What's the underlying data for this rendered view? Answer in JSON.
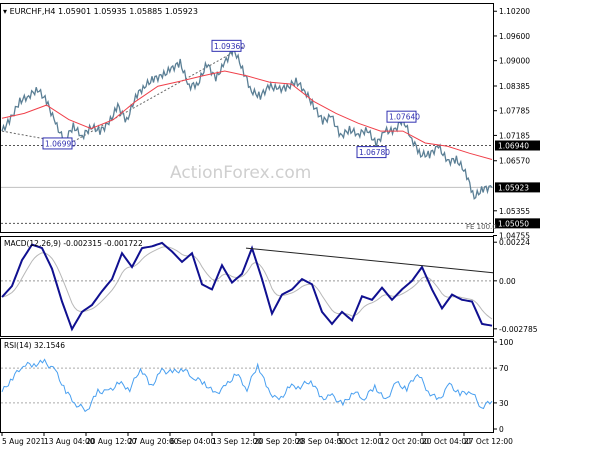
{
  "header": {
    "symbol_label": "EURCHF,H4",
    "ohlc": "1.05901 1.05935 1.05885 1.05923"
  },
  "watermark": "ActionForex.com",
  "colors": {
    "price": "#5b7f95",
    "ma": "#f0404a",
    "macd": "#101090",
    "signal": "#b8b8b8",
    "rsi": "#4aa0f0",
    "label_box": "#3030b0"
  },
  "chart_data": [
    {
      "type": "line",
      "panel": "price",
      "title": "EURCHF,H4 1.05901 1.05935 1.05885 1.05923",
      "ylim": [
        1.0484,
        1.104
      ],
      "y_ticks": [
        "1.10200",
        "1.09600",
        "1.09000",
        "1.08385",
        "1.07785",
        "1.07185",
        "1.06570",
        "1.05355",
        "1.04755"
      ],
      "series": [
        {
          "role": "price",
          "values": [
            1.0729,
            1.076,
            1.0802,
            1.0814,
            1.0831,
            1.0802,
            1.0748,
            1.0704,
            1.0741,
            1.0716,
            1.074,
            1.0729,
            1.0748,
            1.079,
            1.0753,
            1.0814,
            1.0838,
            1.0856,
            1.0863,
            1.088,
            1.0895,
            1.0838,
            1.0844,
            1.0893,
            1.0856,
            1.0895,
            1.0929,
            1.088,
            1.0826,
            1.0814,
            1.0838,
            1.0831,
            1.0834,
            1.0851,
            1.0826,
            1.079,
            1.0753,
            1.0765,
            1.0716,
            1.0733,
            1.0721,
            1.0733,
            1.0697,
            1.0729,
            1.0729,
            1.0758,
            1.0709,
            1.0672,
            1.0672,
            1.0692,
            1.0655,
            1.066,
            1.0631,
            1.0569,
            1.0589,
            1.0592
          ]
        },
        {
          "role": "moving-average",
          "values": [
            1.076,
            1.0772,
            1.0792,
            1.0757,
            1.0735,
            1.0757,
            1.0801,
            1.0838,
            1.085,
            1.0863,
            1.0875,
            1.0863,
            1.0848,
            1.0843,
            1.0801,
            1.0772,
            1.0748,
            1.0729,
            1.0729,
            1.07,
            1.0692,
            1.0675,
            1.066
          ]
        }
      ],
      "annotations": [
        {
          "label": "1.09360",
          "value": 1.0936
        },
        {
          "label": "1.06990",
          "value": 1.0699
        },
        {
          "label": "1.07640",
          "value": 1.0764
        },
        {
          "label": "1.06780",
          "value": 1.0678
        }
      ],
      "levels": [
        {
          "label": "1.06940",
          "value": 1.0694,
          "style": "dotted"
        },
        {
          "label": "1.05923",
          "value": 1.05923,
          "style": "solid"
        },
        {
          "label": "1.05050",
          "value": 1.0505,
          "style": "dotted"
        }
      ],
      "fe_label": "FE 100.0"
    },
    {
      "type": "line",
      "panel": "macd",
      "title": "MACD(12,26,9) -0.002315 -0.001722",
      "ylim": [
        -0.0032,
        0.0026
      ],
      "y_ticks": [
        "0.00224",
        "0.00",
        "-0.002785"
      ],
      "values": [
        -0.00094,
        -0.0003,
        0.0012,
        0.0021,
        0.0019,
        0.0007,
        -0.0012,
        -0.0028,
        -0.0018,
        -0.0014,
        -0.0006,
        0.0001,
        0.0016,
        0.0008,
        0.0019,
        0.002,
        0.0022,
        0.0017,
        0.0011,
        0.0016,
        -0.0002,
        -0.0005,
        0.0009,
        -0.0001,
        0.0004,
        0.0019,
        0.0001,
        -0.0019,
        -0.0008,
        -0.0005,
        0.0001,
        -0.0002,
        -0.0018,
        -0.0025,
        -0.0018,
        -0.0023,
        -0.0009,
        -0.0011,
        -0.0004,
        -0.0011,
        -0.0005,
        0.0,
        0.0008,
        -0.0005,
        -0.0016,
        -0.0008,
        -0.0011,
        -0.0012,
        -0.0025,
        -0.0026
      ],
      "trendline": [
        0.0019,
        0.00047
      ]
    },
    {
      "type": "line",
      "panel": "rsi",
      "title": "RSI(14) 32.1546",
      "ylim": [
        0,
        100
      ],
      "y_ticks": [
        "100",
        "70",
        "30",
        "0"
      ],
      "levels": [
        70,
        30
      ],
      "values": [
        42.6,
        59,
        74,
        74,
        77,
        67,
        43,
        28,
        22,
        43,
        43,
        53,
        46,
        70,
        49,
        67,
        65,
        69,
        59,
        53,
        40,
        49,
        64,
        46,
        74,
        44,
        32,
        49,
        49,
        56,
        35,
        38,
        28,
        43,
        35,
        49,
        32,
        53,
        46,
        65,
        43,
        33,
        51,
        40,
        44,
        25,
        32
      ]
    }
  ],
  "x_ticks": [
    "5 Aug 2021",
    "13 Aug 04:00",
    "20 Aug 12:00",
    "27 Aug 20:00",
    "6 Sep 04:00",
    "13 Sep 12:00",
    "20 Sep 20:00",
    "28 Sep 04:00",
    "5 Oct 12:00",
    "12 Oct 20:00",
    "20 Oct 04:00",
    "27 Oct 12:00"
  ]
}
